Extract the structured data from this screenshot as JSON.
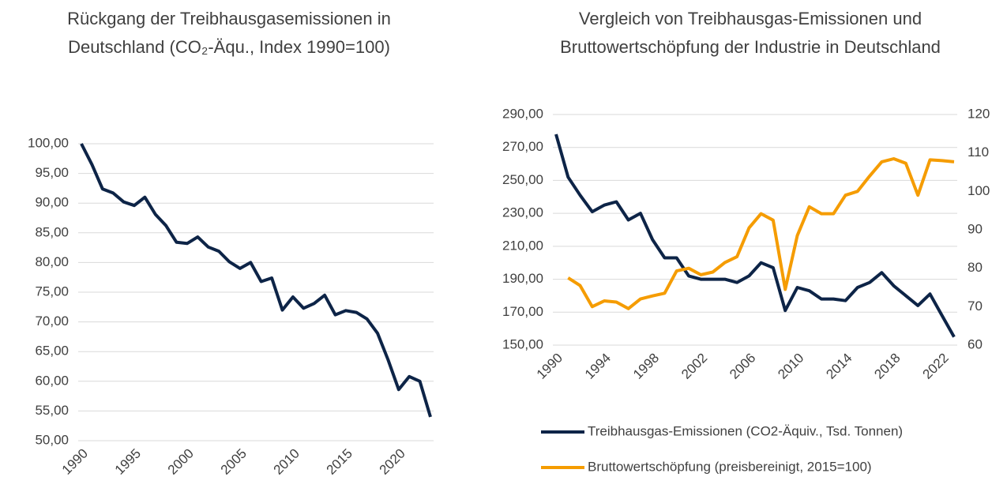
{
  "chart_data": [
    {
      "type": "line",
      "title": "Rückgang der Treibhausgasemissionen in Deutschland (CO₂-Äqu., Index 1990=100)",
      "x": [
        1990,
        1991,
        1992,
        1993,
        1994,
        1995,
        1996,
        1997,
        1998,
        1999,
        2000,
        2001,
        2002,
        2003,
        2004,
        2005,
        2006,
        2007,
        2008,
        2009,
        2010,
        2011,
        2012,
        2013,
        2014,
        2015,
        2016,
        2017,
        2018,
        2019,
        2020,
        2021,
        2022,
        2023
      ],
      "series": [
        {
          "color": "#0d2447",
          "values": [
            100,
            96.5,
            92.4,
            91.7,
            90.2,
            89.6,
            91.0,
            88.1,
            86.2,
            83.4,
            83.2,
            84.3,
            82.6,
            81.9,
            80.1,
            79.0,
            80.0,
            76.8,
            77.4,
            72.0,
            74.2,
            72.3,
            73.1,
            74.5,
            71.2,
            71.9,
            71.6,
            70.5,
            68.1,
            63.6,
            58.6,
            60.8,
            60.0,
            54.0
          ]
        }
      ],
      "xlim": [
        1990,
        2023
      ],
      "xticks": [
        1990,
        1995,
        2000,
        2005,
        2010,
        2015,
        2020
      ],
      "ylim": [
        50,
        100
      ],
      "yticks": [
        {
          "value": 50,
          "label": "50,00"
        },
        {
          "value": 55,
          "label": "55,00"
        },
        {
          "value": 60,
          "label": "60,00"
        },
        {
          "value": 65,
          "label": "65,00"
        },
        {
          "value": 70,
          "label": "70,00"
        },
        {
          "value": 75,
          "label": "75,00"
        },
        {
          "value": 80,
          "label": "80,00"
        },
        {
          "value": 85,
          "label": "85,00"
        },
        {
          "value": 90,
          "label": "90,00"
        },
        {
          "value": 95,
          "label": "95,00"
        },
        {
          "value": 100,
          "label": "100,00"
        }
      ],
      "grid": true
    },
    {
      "type": "line",
      "title": "Vergleich von Treibhausgas-Emissionen und Bruttowertschöpfung der Industrie in Deutschland",
      "x": [
        1990,
        1991,
        1992,
        1993,
        1994,
        1995,
        1996,
        1997,
        1998,
        1999,
        2000,
        2001,
        2002,
        2003,
        2004,
        2005,
        2006,
        2007,
        2008,
        2009,
        2010,
        2011,
        2012,
        2013,
        2014,
        2015,
        2016,
        2017,
        2018,
        2019,
        2020,
        2021,
        2022,
        2023
      ],
      "series": [
        {
          "name": "Treibhausgas-Emissionen (CO2-Äquiv., Tsd. Tonnen)",
          "color": "#0d2447",
          "values": [
            278,
            252,
            241,
            231,
            235,
            237,
            226,
            230,
            214,
            203,
            203,
            192,
            190,
            190,
            190,
            188,
            192,
            200,
            197,
            171,
            185,
            183,
            178,
            178,
            177,
            185,
            188,
            194,
            186,
            180,
            174,
            181,
            168,
            155
          ]
        },
        {
          "name": "Bruttowertschöpfung (preisbereinigt, 2015=100)",
          "color": "#f59c00",
          "axis": "y2",
          "values": [
            null,
            77.5,
            75.5,
            70,
            71.5,
            71.2,
            69.5,
            72,
            72.8,
            73.5,
            79.3,
            80,
            78.3,
            79,
            81.5,
            83,
            90.5,
            94.2,
            92.5,
            74.5,
            88.5,
            96,
            94.2,
            94.2,
            99,
            100,
            104,
            107.7,
            108.5,
            107.3,
            99,
            108.2,
            108,
            107.7
          ]
        }
      ],
      "xlim": [
        1990,
        2023
      ],
      "xticks": [
        1990,
        1994,
        1998,
        2002,
        2006,
        2010,
        2014,
        2018,
        2022
      ],
      "ylim": [
        150,
        290
      ],
      "yticks": [
        {
          "value": 150,
          "label": "150,00"
        },
        {
          "value": 170,
          "label": "170,00"
        },
        {
          "value": 190,
          "label": "190,00"
        },
        {
          "value": 210,
          "label": "210,00"
        },
        {
          "value": 230,
          "label": "230,00"
        },
        {
          "value": 250,
          "label": "250,00"
        },
        {
          "value": 270,
          "label": "270,00"
        },
        {
          "value": 290,
          "label": "290,00"
        }
      ],
      "y2lim": [
        60,
        120
      ],
      "y2ticks": [
        60,
        70,
        80,
        90,
        100,
        110,
        120
      ],
      "grid": true,
      "legend": "bottom"
    }
  ]
}
